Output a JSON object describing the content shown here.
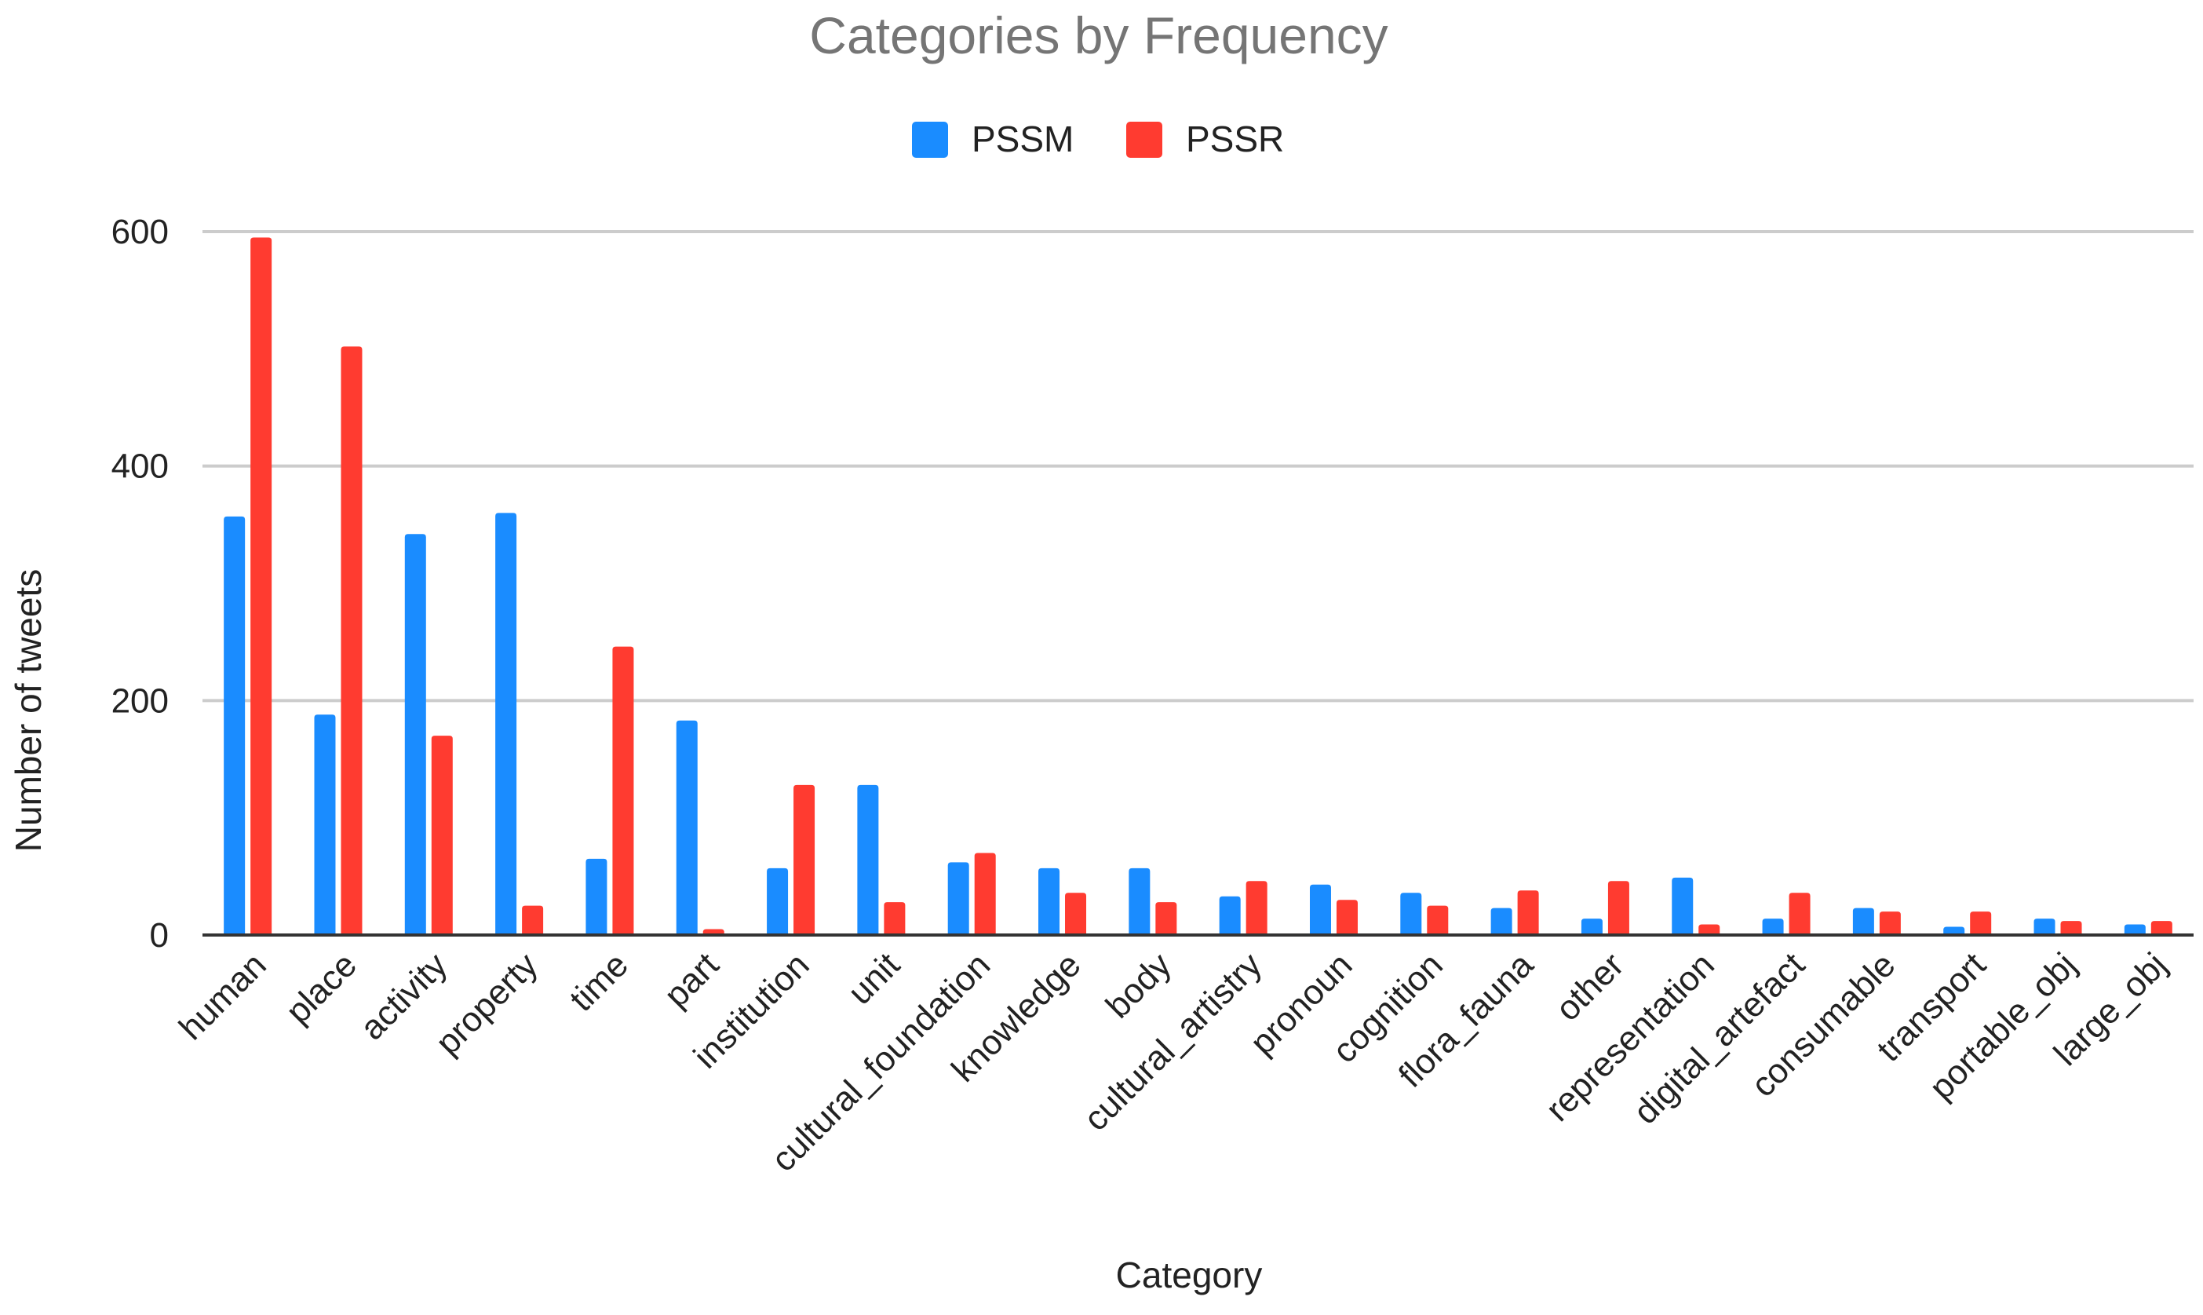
{
  "chart_data": {
    "type": "bar",
    "title": "Categories by Frequency",
    "xlabel": "Category",
    "ylabel": "Number of tweets",
    "ylim": [
      0,
      600
    ],
    "yticks": [
      0,
      200,
      400,
      600
    ],
    "grid": true,
    "legend_position": "top-center",
    "categories": [
      "human",
      "place",
      "activity",
      "property",
      "time",
      "part",
      "institution",
      "unit",
      "cultural_foundation",
      "knowledge",
      "body",
      "cultural_artistry",
      "pronoun",
      "cognition",
      "flora_fauna",
      "other",
      "representation",
      "digital_artefact",
      "consumable",
      "transport",
      "portable_obj",
      "large_obj"
    ],
    "series": [
      {
        "name": "PSSM",
        "color": "#1a8cff",
        "values": [
          357,
          188,
          342,
          360,
          65,
          183,
          57,
          128,
          62,
          57,
          57,
          33,
          43,
          36,
          23,
          14,
          49,
          14,
          23,
          7,
          14,
          9
        ]
      },
      {
        "name": "PSSR",
        "color": "#ff3b30",
        "values": [
          595,
          502,
          170,
          25,
          246,
          5,
          128,
          28,
          70,
          36,
          28,
          46,
          30,
          25,
          38,
          46,
          9,
          36,
          20,
          20,
          12,
          12
        ]
      }
    ]
  }
}
